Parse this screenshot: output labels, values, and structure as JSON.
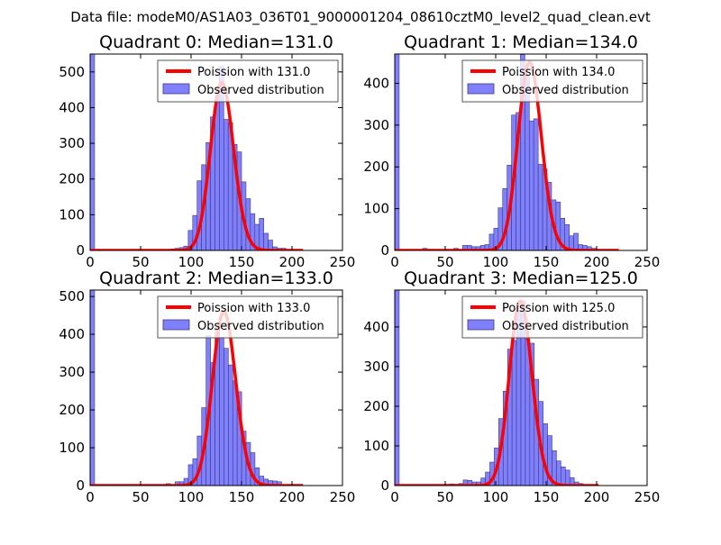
{
  "suptitle": "Data file: modeM0/AS1A03_036T01_9000001204_08610cztM0_level2_quad_clean.evt",
  "colors": {
    "bar_fill": "#8080ff",
    "bar_edge": "#3a3a7a",
    "curve": "#ff0000"
  },
  "chart_data": [
    {
      "type": "bar",
      "title": "Quadrant 0: Median=131.0",
      "median": 131.0,
      "xlim": [
        0,
        250
      ],
      "ylim": [
        0,
        550
      ],
      "xticks": [
        "0",
        "50",
        "100",
        "150",
        "200",
        "250"
      ],
      "yticks": [
        "0",
        "100",
        "200",
        "300",
        "400",
        "500"
      ],
      "legend": {
        "placement": "top-right",
        "curve_label": "Poission with 131.0",
        "bar_label": "Observed distribution"
      },
      "bin_width": 4.4,
      "zero_bin_count": 600,
      "bin_start": 62.0,
      "counts": [
        3,
        0,
        3,
        0,
        4,
        6,
        8,
        12,
        56,
        98,
        195,
        240,
        302,
        374,
        430,
        515,
        367,
        358,
        297,
        276,
        192,
        145,
        103,
        73,
        90,
        48,
        29,
        10,
        6,
        6,
        2
      ],
      "curve_peak": 470,
      "curve_range": [
        0,
        211
      ]
    },
    {
      "type": "bar",
      "title": "Quadrant 1: Median=134.0",
      "median": 134.0,
      "xlim": [
        0,
        250
      ],
      "ylim": [
        0,
        470
      ],
      "xticks": [
        "0",
        "50",
        "100",
        "150",
        "200",
        "250"
      ],
      "yticks": [
        "0",
        "100",
        "200",
        "300",
        "400"
      ],
      "legend": {
        "placement": "top-right",
        "curve_label": "Poission with 134.0",
        "bar_label": "Observed distribution"
      },
      "bin_width": 4.4,
      "zero_bin_count": 600,
      "bin_start": 27.7,
      "counts": [
        5,
        0,
        0,
        0,
        0,
        0,
        0,
        5,
        0,
        12,
        12,
        9,
        9,
        12,
        14,
        39,
        53,
        102,
        148,
        204,
        324,
        330,
        469,
        420,
        310,
        315,
        206,
        195,
        163,
        121,
        116,
        77,
        62,
        35,
        41,
        14,
        12,
        9,
        5
      ],
      "curve_peak": 450,
      "curve_range": [
        0,
        222
      ]
    },
    {
      "type": "bar",
      "title": "Quadrant 2: Median=133.0",
      "median": 133.0,
      "xlim": [
        0,
        250
      ],
      "ylim": [
        0,
        517
      ],
      "xticks": [
        "0",
        "50",
        "100",
        "150",
        "200",
        "250"
      ],
      "yticks": [
        "0",
        "100",
        "200",
        "300",
        "400",
        "500"
      ],
      "legend": {
        "placement": "top-right",
        "curve_label": "Poission with 133.0",
        "bar_label": "Observed distribution"
      },
      "bin_width": 4.4,
      "zero_bin_count": 600,
      "bin_start": 75.3,
      "counts": [
        5,
        0,
        10,
        10,
        19,
        55,
        71,
        131,
        206,
        396,
        325,
        420,
        392,
        363,
        319,
        277,
        248,
        144,
        114,
        87,
        47,
        25,
        17,
        13,
        12,
        10
      ],
      "curve_peak": 460,
      "curve_range": [
        0,
        211
      ]
    },
    {
      "type": "bar",
      "title": "Quadrant 3: Median=125.0",
      "median": 125.0,
      "xlim": [
        0,
        250
      ],
      "ylim": [
        0,
        493
      ],
      "xticks": [
        "0",
        "50",
        "100",
        "150",
        "200",
        "250"
      ],
      "yticks": [
        "0",
        "100",
        "200",
        "300",
        "400"
      ],
      "legend": {
        "placement": "top-right",
        "curve_label": "Poission with 125.0",
        "bar_label": "Observed distribution"
      },
      "bin_width": 4.4,
      "zero_bin_count": 600,
      "bin_start": 50.2,
      "counts": [
        3,
        4,
        3,
        5,
        14,
        13,
        9,
        9,
        19,
        34,
        59,
        95,
        169,
        238,
        344,
        366,
        441,
        466,
        370,
        359,
        268,
        212,
        156,
        126,
        88,
        62,
        47,
        39,
        20,
        9,
        5
      ],
      "curve_peak": 465,
      "curve_range": [
        0,
        202
      ]
    }
  ]
}
